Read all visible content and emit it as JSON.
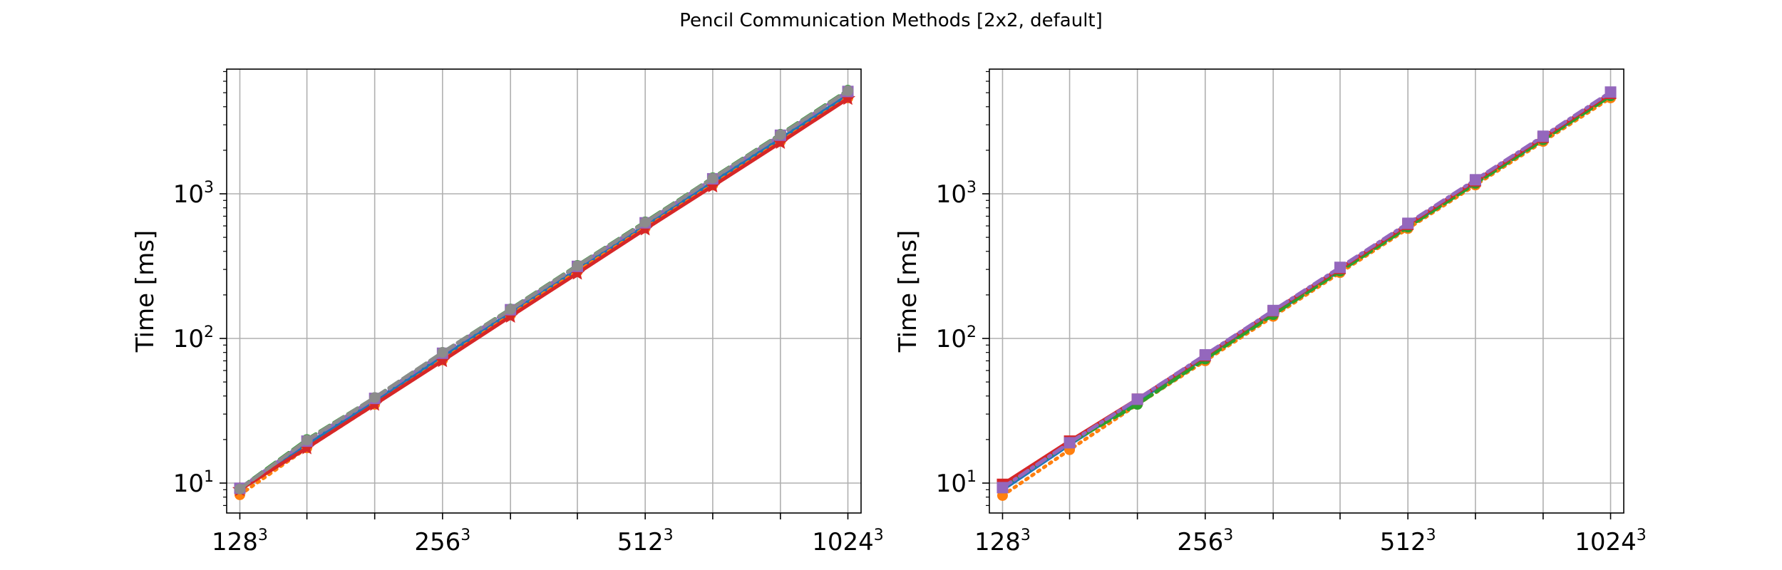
{
  "figure_title": "Pencil Communication Methods [2x2, default]",
  "chart_data": [
    {
      "type": "line",
      "ylabel": "Time [ms]",
      "xlabel": "",
      "xscale": "log2",
      "yscale": "log",
      "grid": true,
      "x_tick_labels": [
        {
          "base": "128",
          "exp": "3",
          "n": 128
        },
        {
          "base": "256",
          "exp": "3",
          "n": 256
        },
        {
          "base": "512",
          "exp": "3",
          "n": 512
        },
        {
          "base": "1024",
          "exp": "3",
          "n": 1024
        }
      ],
      "y_tick_labels": [
        {
          "base": "10",
          "exp": "1",
          "value": 10
        },
        {
          "base": "10",
          "exp": "2",
          "value": 100
        },
        {
          "base": "10",
          "exp": "3",
          "value": 1000
        }
      ],
      "x": [
        128,
        161,
        203,
        256,
        323,
        406,
        512,
        645,
        813,
        1024
      ],
      "series": [
        {
          "color": "#1f77b4",
          "dash": "solid",
          "marker": "circle",
          "values": [
            9,
            18.5,
            37,
            75,
            150,
            300,
            600,
            1200,
            2400,
            4800
          ]
        },
        {
          "color": "#ff7f0e",
          "dash": "dotted",
          "marker": "circle",
          "values": [
            8.3,
            17.5,
            35,
            71,
            145,
            290,
            580,
            1150,
            2300,
            4600
          ]
        },
        {
          "color": "#2ca02c",
          "dash": "dashed",
          "marker": "circle",
          "values": [
            9.2,
            20,
            39,
            80,
            160,
            320,
            640,
            1290,
            2580,
            5200
          ]
        },
        {
          "color": "#d62728",
          "dash": "solid",
          "marker": "star",
          "values": [
            9,
            17.5,
            35,
            70,
            142,
            282,
            570,
            1130,
            2260,
            4550
          ]
        },
        {
          "color": "#9467bd",
          "dash": "dashdot",
          "marker": "square",
          "values": [
            9.2,
            19.5,
            38.5,
            79,
            158,
            315,
            630,
            1270,
            2540,
            5100
          ]
        },
        {
          "color": "#8c8c8c",
          "dash": "dashed",
          "marker": "circle",
          "values": [
            9.1,
            19.8,
            39,
            80,
            159,
            318,
            635,
            1280,
            2560,
            5150
          ]
        }
      ]
    },
    {
      "type": "line",
      "ylabel": "Time [ms]",
      "xlabel": "",
      "xscale": "log2",
      "yscale": "log",
      "grid": true,
      "x_tick_labels": [
        {
          "base": "128",
          "exp": "3",
          "n": 128
        },
        {
          "base": "256",
          "exp": "3",
          "n": 256
        },
        {
          "base": "512",
          "exp": "3",
          "n": 512
        },
        {
          "base": "1024",
          "exp": "3",
          "n": 1024
        }
      ],
      "y_tick_labels": [
        {
          "base": "10",
          "exp": "1",
          "value": 10
        },
        {
          "base": "10",
          "exp": "2",
          "value": 100
        },
        {
          "base": "10",
          "exp": "3",
          "value": 1000
        }
      ],
      "x": [
        128,
        161,
        203,
        256,
        323,
        406,
        512,
        645,
        813,
        1024
      ],
      "series": [
        {
          "color": "#1f77b4",
          "dash": "solid",
          "marker": "circle",
          "values": [
            9,
            18.5,
            37,
            74,
            148,
            296,
            595,
            1190,
            2380,
            4780
          ]
        },
        {
          "color": "#ff7f0e",
          "dash": "dotted",
          "marker": "circle",
          "values": [
            8.2,
            17,
            35,
            70,
            142,
            285,
            575,
            1150,
            2300,
            4600
          ]
        },
        {
          "color": "#2ca02c",
          "dash": "dashed",
          "marker": "circle",
          "values": [
            9.5,
            19,
            35,
            72,
            146,
            292,
            588,
            1180,
            2360,
            4750
          ]
        },
        {
          "color": "#d62728",
          "dash": "solid",
          "marker": "square",
          "values": [
            9.8,
            19.5,
            38,
            76,
            155,
            305,
            615,
            1230,
            2460,
            4950
          ]
        },
        {
          "color": "#9467bd",
          "dash": "dashdot",
          "marker": "square",
          "values": [
            9.3,
            19,
            38,
            77,
            156,
            310,
            625,
            1250,
            2500,
            5050
          ]
        }
      ]
    }
  ]
}
